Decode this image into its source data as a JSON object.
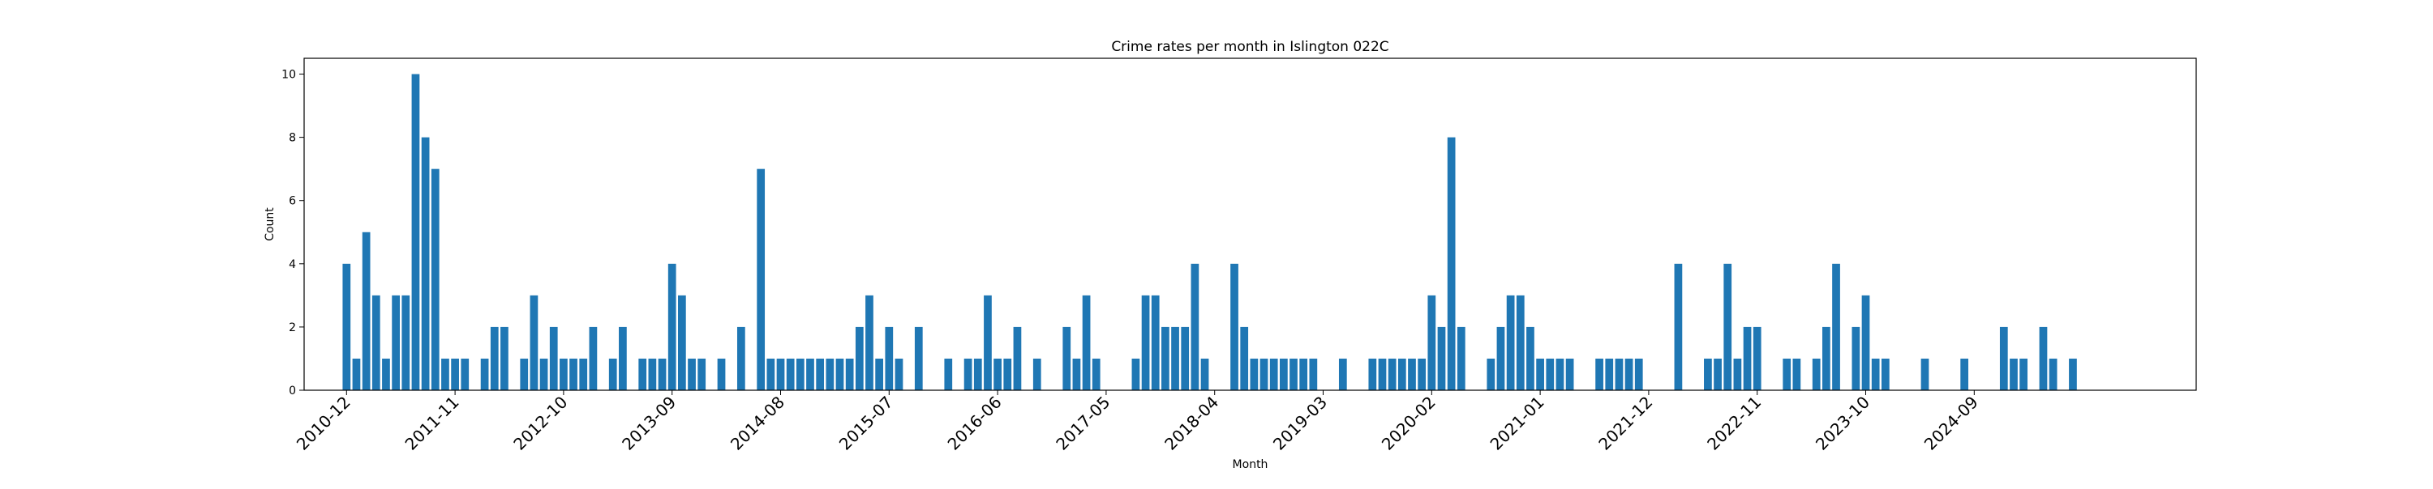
{
  "chart_data": {
    "type": "bar",
    "title": "Crime rates per month in Islington 022C",
    "xlabel": "Month",
    "ylabel": "Count",
    "ylim": [
      0,
      10.5
    ],
    "yticks": [
      0,
      2,
      4,
      6,
      8,
      10
    ],
    "xtick_labels": [
      "2010-12",
      "2011-11",
      "2012-10",
      "2013-09",
      "2014-08",
      "2015-07",
      "2016-06",
      "2017-05",
      "2018-04",
      "2019-03",
      "2020-02",
      "2021-01",
      "2021-12",
      "2022-11",
      "2023-10",
      "2024-09"
    ],
    "xtick_step": 11,
    "first_month": "2010-12",
    "color": "#1f77b4",
    "values": [
      4,
      1,
      5,
      3,
      1,
      3,
      3,
      10,
      8,
      7,
      1,
      1,
      1,
      0,
      1,
      2,
      2,
      0,
      1,
      3,
      1,
      2,
      1,
      1,
      1,
      2,
      0,
      1,
      2,
      0,
      1,
      1,
      1,
      4,
      3,
      1,
      1,
      0,
      1,
      0,
      2,
      0,
      7,
      1,
      1,
      1,
      1,
      1,
      1,
      1,
      1,
      1,
      2,
      3,
      1,
      2,
      1,
      0,
      2,
      0,
      0,
      1,
      0,
      1,
      1,
      3,
      1,
      1,
      2,
      0,
      1,
      0,
      0,
      2,
      1,
      3,
      1,
      0,
      0,
      0,
      1,
      3,
      3,
      2,
      2,
      2,
      4,
      1,
      0,
      0,
      4,
      2,
      1,
      1,
      1,
      1,
      1,
      1,
      1,
      0,
      0,
      1,
      0,
      0,
      1,
      1,
      1,
      1,
      1,
      1,
      3,
      2,
      8,
      2,
      0,
      0,
      1,
      2,
      3,
      3,
      2,
      1,
      1,
      1,
      1,
      0,
      0,
      1,
      1,
      1,
      1,
      1,
      0,
      0,
      0,
      4,
      0,
      0,
      1,
      1,
      4,
      1,
      2,
      2,
      0,
      0,
      1,
      1,
      0,
      1,
      2,
      4,
      0,
      2,
      3,
      1,
      1,
      0,
      0,
      0,
      1,
      0,
      0,
      0,
      1,
      0,
      0,
      0,
      2,
      1,
      1,
      0,
      2,
      1,
      0,
      1
    ]
  }
}
